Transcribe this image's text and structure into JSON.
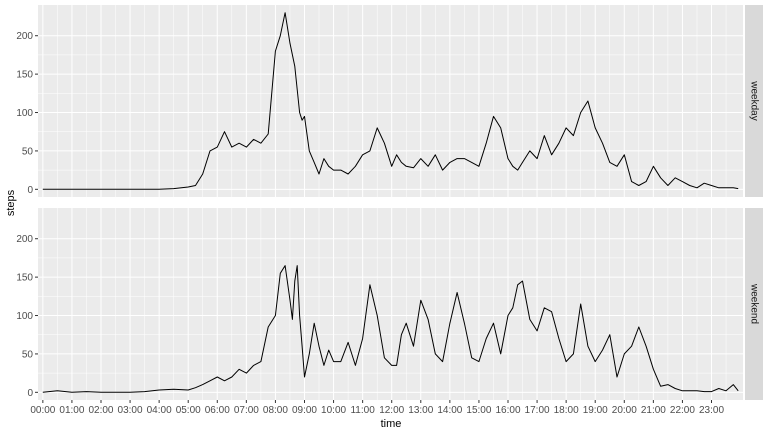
{
  "chart_data": {
    "type": "line",
    "facet_layout": "stacked-rows",
    "xlabel": "time",
    "ylabel": "steps",
    "ylim": [
      -10,
      240
    ],
    "yticks": [
      0,
      50,
      100,
      150,
      200
    ],
    "xticks": [
      "00:00",
      "01:00",
      "02:00",
      "03:00",
      "04:00",
      "05:00",
      "06:00",
      "07:00",
      "08:00",
      "09:00",
      "10:00",
      "11:00",
      "12:00",
      "13:00",
      "14:00",
      "15:00",
      "16:00",
      "17:00",
      "18:00",
      "19:00",
      "20:00",
      "21:00",
      "22:00",
      "23:00"
    ],
    "grid": true,
    "legend": "none",
    "colors": {
      "panel_bg": "#EBEBEB",
      "grid": "#FFFFFF",
      "strip_bg": "#D9D9D9",
      "line": "#000000",
      "tick": "#333333"
    },
    "x_points": [
      "00:00",
      "00:30",
      "01:00",
      "01:30",
      "02:00",
      "02:30",
      "03:00",
      "03:30",
      "04:00",
      "04:30",
      "05:00",
      "05:15",
      "05:30",
      "05:45",
      "06:00",
      "06:15",
      "06:30",
      "06:45",
      "07:00",
      "07:15",
      "07:30",
      "07:45",
      "08:00",
      "08:10",
      "08:20",
      "08:30",
      "08:35",
      "08:40",
      "08:45",
      "08:50",
      "08:55",
      "09:00",
      "09:10",
      "09:20",
      "09:30",
      "09:40",
      "09:50",
      "10:00",
      "10:15",
      "10:30",
      "10:45",
      "11:00",
      "11:15",
      "11:30",
      "11:45",
      "12:00",
      "12:10",
      "12:20",
      "12:30",
      "12:45",
      "13:00",
      "13:15",
      "13:30",
      "13:45",
      "14:00",
      "14:15",
      "14:30",
      "14:45",
      "15:00",
      "15:15",
      "15:30",
      "15:45",
      "16:00",
      "16:10",
      "16:20",
      "16:30",
      "16:45",
      "17:00",
      "17:15",
      "17:30",
      "17:45",
      "18:00",
      "18:15",
      "18:30",
      "18:45",
      "19:00",
      "19:15",
      "19:30",
      "19:45",
      "20:00",
      "20:15",
      "20:30",
      "20:45",
      "21:00",
      "21:15",
      "21:30",
      "21:45",
      "22:00",
      "22:15",
      "22:30",
      "22:45",
      "23:00",
      "23:15",
      "23:30",
      "23:45",
      "23:55"
    ],
    "facets": [
      {
        "label": "weekday",
        "values": [
          0,
          0,
          0,
          0,
          0,
          0,
          0,
          0,
          0,
          1,
          3,
          5,
          20,
          50,
          55,
          75,
          55,
          60,
          55,
          65,
          60,
          72,
          180,
          200,
          230,
          190,
          175,
          160,
          130,
          100,
          90,
          95,
          50,
          35,
          20,
          40,
          30,
          25,
          25,
          20,
          30,
          45,
          50,
          80,
          60,
          30,
          45,
          35,
          30,
          28,
          40,
          30,
          45,
          25,
          35,
          40,
          40,
          35,
          30,
          60,
          95,
          80,
          40,
          30,
          25,
          35,
          50,
          40,
          70,
          45,
          60,
          80,
          70,
          100,
          115,
          80,
          60,
          35,
          30,
          45,
          10,
          5,
          10,
          30,
          15,
          5,
          15,
          10,
          5,
          2,
          8,
          5,
          2,
          2,
          2,
          1
        ]
      },
      {
        "label": "weekend",
        "values": [
          0,
          2,
          0,
          1,
          0,
          0,
          0,
          1,
          3,
          4,
          3,
          6,
          10,
          15,
          20,
          15,
          20,
          30,
          25,
          35,
          40,
          85,
          100,
          155,
          165,
          120,
          95,
          145,
          165,
          100,
          60,
          20,
          50,
          90,
          60,
          35,
          55,
          40,
          40,
          65,
          35,
          70,
          140,
          100,
          45,
          35,
          35,
          75,
          90,
          60,
          120,
          95,
          50,
          40,
          90,
          130,
          90,
          45,
          40,
          70,
          90,
          50,
          100,
          110,
          140,
          145,
          95,
          80,
          110,
          105,
          70,
          40,
          50,
          115,
          60,
          40,
          55,
          75,
          20,
          50,
          60,
          85,
          60,
          30,
          8,
          10,
          5,
          2,
          2,
          2,
          1,
          1,
          5,
          2,
          10,
          2
        ]
      }
    ]
  }
}
